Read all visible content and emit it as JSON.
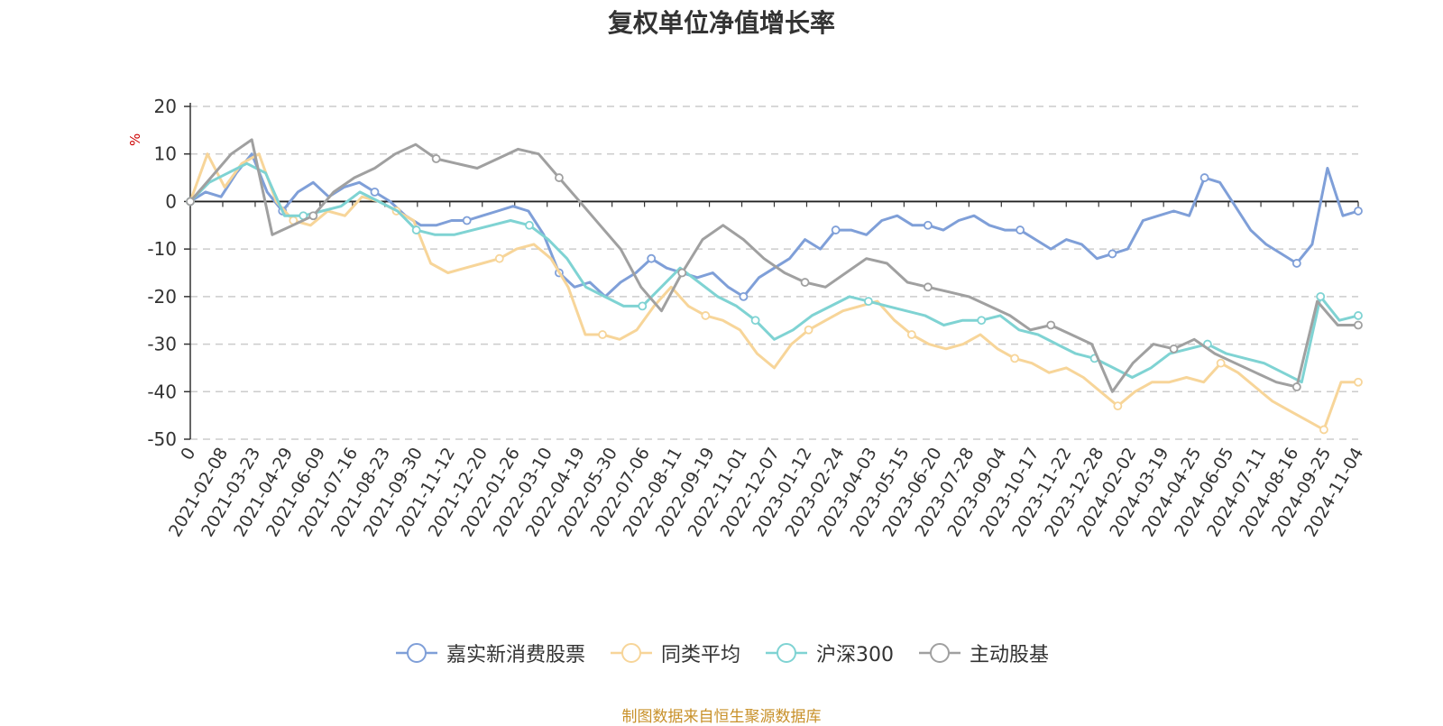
{
  "chart_data": {
    "type": "line",
    "title": "复权单位净值增长率",
    "ylabel": "%",
    "ylim": [
      -50,
      20
    ],
    "yticks": [
      20,
      10,
      0,
      -10,
      -20,
      -30,
      -40,
      -50
    ],
    "grid": true,
    "legend_position": "bottom",
    "x_tick_labels": [
      "0",
      "2021-02-08",
      "2021-03-23",
      "2021-04-29",
      "2021-06-09",
      "2021-07-16",
      "2021-08-23",
      "2021-09-30",
      "2021-11-12",
      "2021-12-20",
      "2022-01-26",
      "2022-03-10",
      "2022-04-19",
      "2022-05-30",
      "2022-07-06",
      "2022-08-11",
      "2022-09-19",
      "2022-11-01",
      "2022-12-07",
      "2023-01-12",
      "2023-02-24",
      "2023-04-03",
      "2023-05-15",
      "2023-06-20",
      "2023-07-28",
      "2023-09-04",
      "2023-10-17",
      "2023-11-22",
      "2023-12-28",
      "2024-02-02",
      "2024-03-19",
      "2024-04-25",
      "2024-06-05",
      "2024-07-11",
      "2024-08-16",
      "2024-09-25",
      "2024-11-04"
    ],
    "series": [
      {
        "name": "嘉实新消费股票",
        "color": "#7f9fd8",
        "values": [
          0,
          2,
          1,
          6,
          10,
          2,
          -2,
          2,
          4,
          1,
          3,
          4,
          2,
          0,
          -3,
          -5,
          -5,
          -4,
          -4,
          -3,
          -2,
          -1,
          -2,
          -7,
          -15,
          -18,
          -17,
          -20,
          -17,
          -15,
          -12,
          -14,
          -15,
          -16,
          -15,
          -18,
          -20,
          -16,
          -14,
          -12,
          -8,
          -10,
          -6,
          -6,
          -7,
          -4,
          -3,
          -5,
          -5,
          -6,
          -4,
          -3,
          -5,
          -6,
          -6,
          -8,
          -10,
          -8,
          -9,
          -12,
          -11,
          -10,
          -4,
          -3,
          -2,
          -3,
          5,
          4,
          -1,
          -6,
          -9,
          -11,
          -13,
          -9,
          7,
          -3,
          -2
        ]
      },
      {
        "name": "同类平均",
        "color": "#f7d599",
        "values": [
          0,
          10,
          3,
          8,
          10,
          0,
          -4,
          -5,
          -2,
          -3,
          1,
          0,
          -2,
          -4,
          -13,
          -15,
          -14,
          -13,
          -12,
          -10,
          -9,
          -12,
          -18,
          -28,
          -28,
          -29,
          -27,
          -22,
          -18,
          -22,
          -24,
          -25,
          -27,
          -32,
          -35,
          -30,
          -27,
          -25,
          -23,
          -22,
          -21,
          -25,
          -28,
          -30,
          -31,
          -30,
          -28,
          -31,
          -33,
          -34,
          -36,
          -35,
          -37,
          -40,
          -43,
          -40,
          -38,
          -38,
          -37,
          -38,
          -34,
          -36,
          -39,
          -42,
          -44,
          -46,
          -48,
          -38,
          -38
        ]
      },
      {
        "name": "沪深300",
        "color": "#7fd3d3",
        "values": [
          0,
          4,
          6,
          8,
          6,
          -3,
          -3,
          -2,
          -1,
          2,
          0,
          -2,
          -6,
          -7,
          -7,
          -6,
          -5,
          -4,
          -5,
          -8,
          -12,
          -18,
          -20,
          -22,
          -22,
          -18,
          -14,
          -17,
          -20,
          -22,
          -25,
          -29,
          -27,
          -24,
          -22,
          -20,
          -21,
          -22,
          -23,
          -24,
          -26,
          -25,
          -25,
          -24,
          -27,
          -28,
          -30,
          -32,
          -33,
          -35,
          -37,
          -35,
          -32,
          -31,
          -30,
          -32,
          -33,
          -34,
          -36,
          -38,
          -20,
          -25,
          -24
        ]
      },
      {
        "name": "主动股基",
        "color": "#a0a0a0",
        "values": [
          0,
          5,
          10,
          13,
          -7,
          -5,
          -3,
          2,
          5,
          7,
          10,
          12,
          9,
          8,
          7,
          9,
          11,
          10,
          5,
          0,
          -5,
          -10,
          -18,
          -23,
          -15,
          -8,
          -5,
          -8,
          -12,
          -15,
          -17,
          -18,
          -15,
          -12,
          -13,
          -17,
          -18,
          -19,
          -20,
          -22,
          -24,
          -27,
          -26,
          -28,
          -30,
          -40,
          -34,
          -30,
          -31,
          -29,
          -32,
          -34,
          -36,
          -38,
          -39,
          -21,
          -26,
          -26
        ]
      }
    ]
  },
  "legend": [
    "嘉实新消费股票",
    "同类平均",
    "沪深300",
    "主动股基"
  ],
  "source_note": "制图数据来自恒生聚源数据库"
}
